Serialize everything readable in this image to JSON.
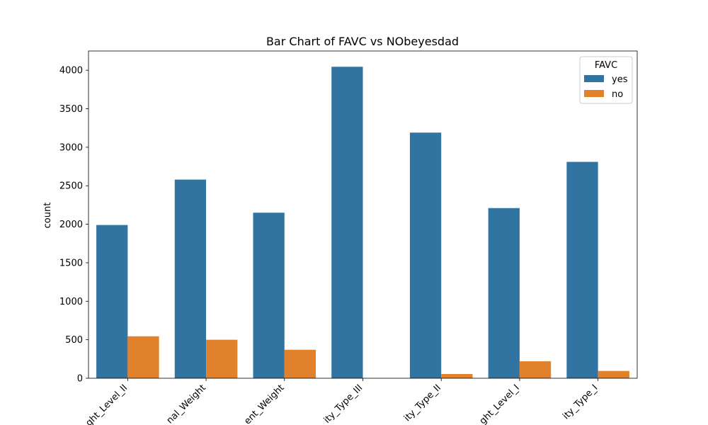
{
  "chart_data": {
    "type": "bar",
    "title": "Bar Chart of FAVC vs NObeyesdad",
    "xlabel": "",
    "ylabel": "count",
    "ylim": [
      0,
      4250
    ],
    "yticks": [
      0,
      500,
      1000,
      1500,
      2000,
      2500,
      3000,
      3500,
      4000
    ],
    "categories": [
      "Overweight_Level_II",
      "Normal_Weight",
      "Insufficient_Weight",
      "Obesity_Type_III",
      "Obesity_Type_II",
      "Overweight_Level_I",
      "Obesity_Type_I"
    ],
    "category_labels_visible": [
      "ght_Level_II",
      "nal_Weight",
      "ent_Weight",
      "ity_Type_III",
      "ity_Type_II",
      "ght_Level_I",
      "ity_Type_I"
    ],
    "series": [
      {
        "name": "yes",
        "color": "#3274a1",
        "values": [
          1990,
          2580,
          2150,
          4045,
          3190,
          2210,
          2810
        ]
      },
      {
        "name": "no",
        "color": "#e1812c",
        "values": [
          545,
          500,
          370,
          0,
          55,
          220,
          95
        ]
      }
    ],
    "legend": {
      "title": "FAVC",
      "position": "top-right"
    },
    "grid": false
  }
}
